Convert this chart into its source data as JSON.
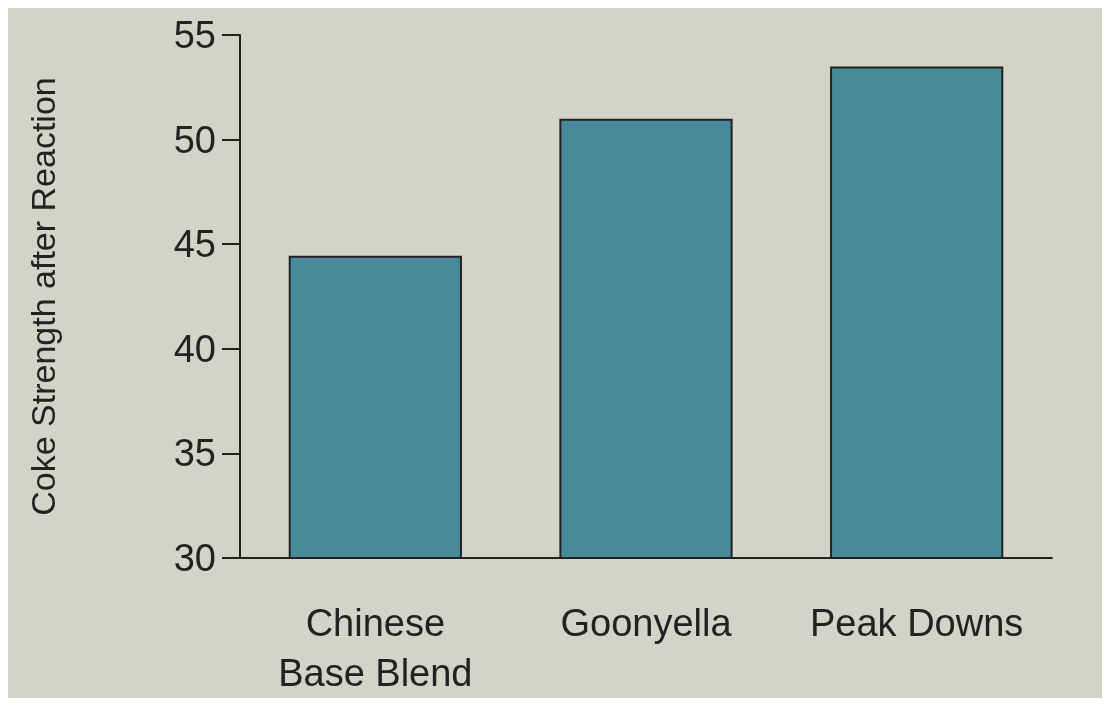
{
  "chart_data": {
    "type": "bar",
    "ylabel": "Coke Strength after Reaction",
    "categories": [
      "Chinese\nBase Blend",
      "Goonyella",
      "Peak Downs"
    ],
    "values": [
      44.45,
      51,
      53.5
    ],
    "color": "#478b9b",
    "ylim": [
      30,
      55
    ],
    "yticks": [
      30,
      35,
      40,
      45,
      50,
      55
    ]
  }
}
